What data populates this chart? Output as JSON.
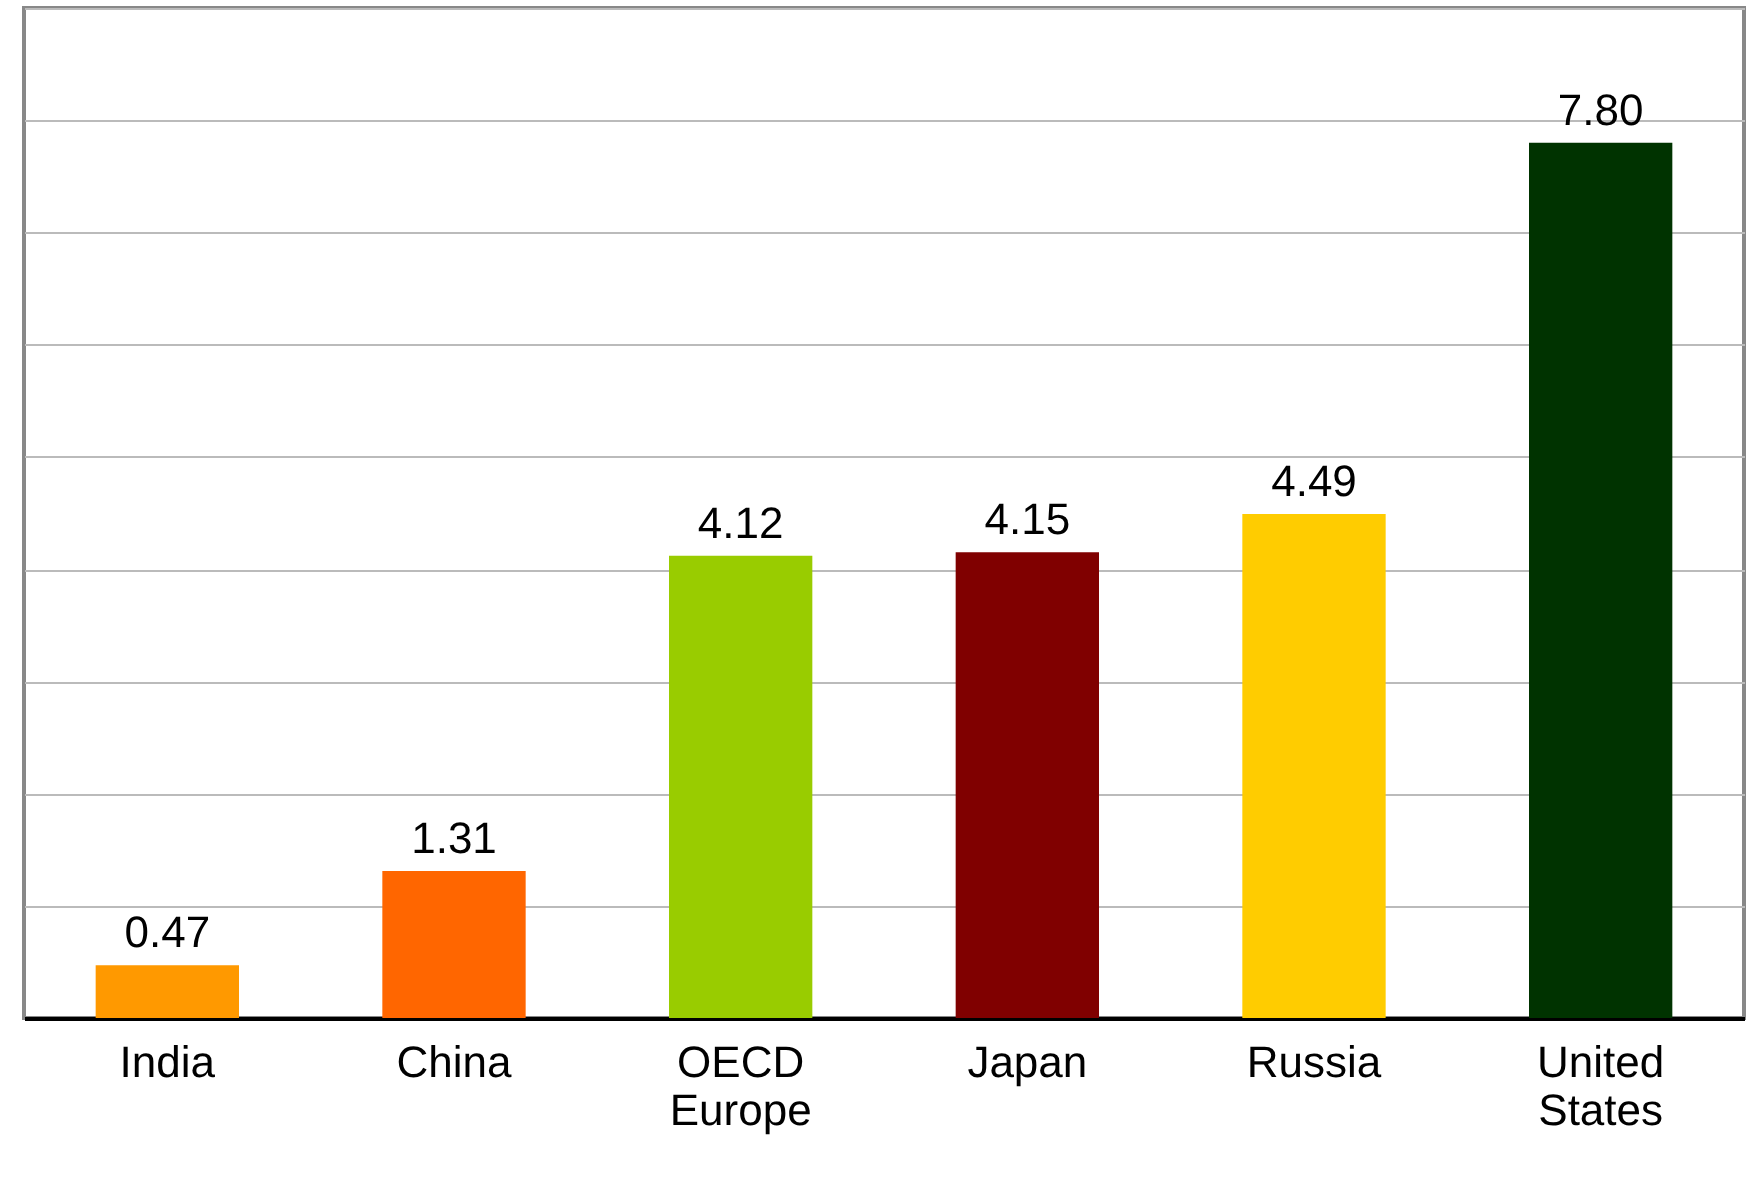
{
  "chart_data": {
    "type": "bar",
    "categories": [
      "India",
      "China",
      "OECD Europe",
      "Japan",
      "Russia",
      "United States"
    ],
    "values": [
      0.47,
      1.31,
      4.12,
      4.15,
      4.49,
      7.8
    ],
    "value_labels": [
      "0.47",
      "1.31",
      "4.12",
      "4.15",
      "4.49",
      "7.80"
    ],
    "colors": [
      "#ff9900",
      "#ff6600",
      "#99cc00",
      "#800000",
      "#ffcc00",
      "#003300"
    ],
    "ylim": [
      0,
      9
    ],
    "yticks": [
      {
        "value": 0,
        "label": null
      },
      {
        "value": 1,
        "label": null
      },
      {
        "value": 2,
        "label": null
      },
      {
        "value": 3,
        "label": null
      },
      {
        "value": 4,
        "label": null
      },
      {
        "value": 5,
        "label": null
      },
      {
        "value": 6,
        "label": null
      },
      {
        "value": 7,
        "label": null
      },
      {
        "value": 8,
        "label": null
      },
      {
        "value": 9,
        "label": null
      }
    ],
    "grid": "y",
    "tick_labels": "x",
    "legend": false
  }
}
